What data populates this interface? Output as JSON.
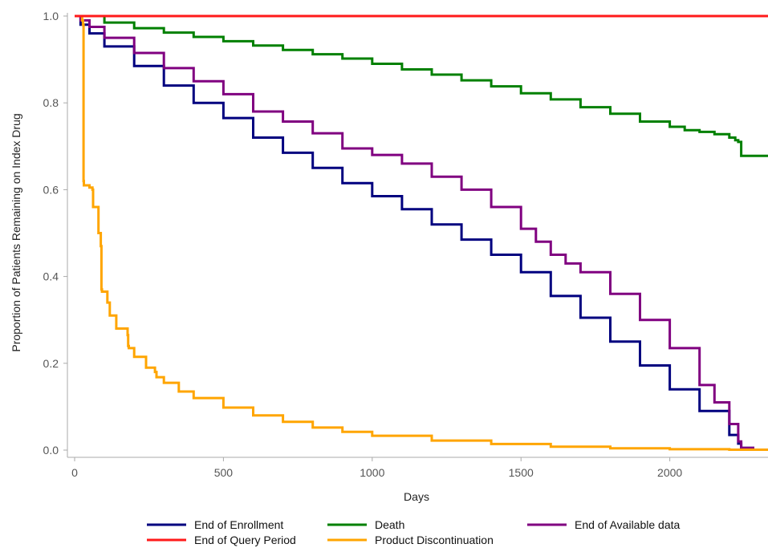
{
  "chart_data": {
    "type": "line",
    "title": "",
    "xlabel": "Days",
    "ylabel": "Proportion of Patients Remaining on Index Drug",
    "xlim": [
      0,
      2330
    ],
    "ylim": [
      0,
      1.0
    ],
    "x_ticks": [
      0,
      500,
      1000,
      1500,
      2000
    ],
    "x_tick_labels": [
      "0",
      "500",
      "1000",
      "1500",
      "2000"
    ],
    "y_ticks": [
      0,
      0.2,
      0.4,
      0.6,
      0.8,
      1.0
    ],
    "y_tick_labels": [
      "0.0",
      "0.2",
      "0.4",
      "0.6",
      "0.8",
      "1.0"
    ],
    "grid": false,
    "legend_position": "bottom",
    "series": [
      {
        "name": "End of Enrollment",
        "color": "#00007f",
        "x": [
          0,
          20,
          50,
          100,
          200,
          300,
          400,
          500,
          600,
          700,
          800,
          900,
          1000,
          1100,
          1200,
          1300,
          1400,
          1500,
          1600,
          1700,
          1800,
          1900,
          2000,
          2100,
          2200,
          2230,
          2240,
          2280
        ],
        "y": [
          1.0,
          0.98,
          0.96,
          0.93,
          0.885,
          0.84,
          0.8,
          0.765,
          0.72,
          0.685,
          0.65,
          0.615,
          0.585,
          0.555,
          0.52,
          0.485,
          0.45,
          0.41,
          0.355,
          0.305,
          0.25,
          0.195,
          0.14,
          0.09,
          0.035,
          0.015,
          0.005,
          0.0
        ]
      },
      {
        "name": "End of Query Period",
        "color": "#ff1a1a",
        "x": [
          0,
          2330
        ],
        "y": [
          1.0,
          1.0
        ]
      },
      {
        "name": "Death",
        "color": "#008000",
        "x": [
          0,
          100,
          200,
          300,
          400,
          500,
          600,
          700,
          800,
          900,
          1000,
          1100,
          1200,
          1300,
          1400,
          1500,
          1600,
          1700,
          1800,
          1900,
          2000,
          2050,
          2100,
          2150,
          2200,
          2220,
          2230,
          2240,
          2330
        ],
        "y": [
          1.0,
          0.985,
          0.972,
          0.962,
          0.952,
          0.942,
          0.932,
          0.922,
          0.912,
          0.902,
          0.89,
          0.877,
          0.865,
          0.852,
          0.838,
          0.822,
          0.808,
          0.79,
          0.775,
          0.757,
          0.745,
          0.737,
          0.733,
          0.728,
          0.72,
          0.714,
          0.71,
          0.678,
          0.678
        ]
      },
      {
        "name": "End of Available data",
        "color": "#800080",
        "x": [
          0,
          20,
          50,
          100,
          200,
          300,
          400,
          500,
          600,
          700,
          800,
          900,
          1000,
          1100,
          1200,
          1300,
          1400,
          1500,
          1550,
          1600,
          1650,
          1700,
          1800,
          1900,
          2000,
          2100,
          2150,
          2200,
          2230,
          2240,
          2280
        ],
        "y": [
          1.0,
          0.99,
          0.975,
          0.95,
          0.915,
          0.88,
          0.85,
          0.82,
          0.78,
          0.757,
          0.73,
          0.695,
          0.68,
          0.66,
          0.63,
          0.6,
          0.56,
          0.51,
          0.48,
          0.45,
          0.43,
          0.41,
          0.36,
          0.3,
          0.235,
          0.15,
          0.11,
          0.06,
          0.02,
          0.005,
          0.0
        ]
      },
      {
        "name": "Product Discontinuation",
        "color": "#ffa500",
        "x": [
          0,
          25,
          28,
          30,
          31,
          50,
          60,
          62,
          80,
          88,
          90,
          92,
          110,
          118,
          140,
          178,
          180,
          182,
          200,
          240,
          270,
          275,
          300,
          350,
          400,
          500,
          600,
          700,
          800,
          900,
          1000,
          1200,
          1400,
          1600,
          1800,
          2000,
          2200,
          2330
        ],
        "y": [
          1.0,
          0.99,
          0.98,
          0.62,
          0.61,
          0.605,
          0.6,
          0.56,
          0.5,
          0.47,
          0.37,
          0.365,
          0.34,
          0.31,
          0.28,
          0.265,
          0.24,
          0.235,
          0.215,
          0.19,
          0.18,
          0.168,
          0.155,
          0.135,
          0.12,
          0.098,
          0.08,
          0.065,
          0.052,
          0.042,
          0.033,
          0.022,
          0.014,
          0.008,
          0.004,
          0.002,
          0.001,
          0.0
        ]
      }
    ]
  }
}
